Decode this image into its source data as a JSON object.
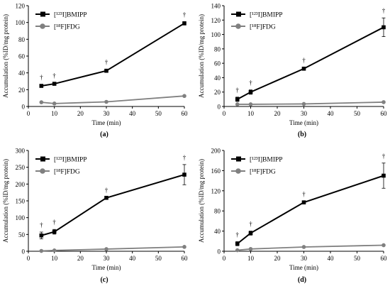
{
  "figure": {
    "colors": {
      "bmipp": "#000000",
      "fdg": "#808080",
      "axis": "#000000"
    },
    "ylabel": "Accumulation (%ID/mg protein)",
    "xlabel": "Time (min)"
  },
  "chart_data": [
    {
      "type": "line",
      "panel_label": "(a)",
      "xlabel": "Time (min)",
      "ylabel": "Accumulation (%ID/mg protein)",
      "xlim": [
        0,
        60
      ],
      "ylim": [
        0,
        120
      ],
      "xticks": [
        0,
        10,
        20,
        30,
        40,
        50,
        60
      ],
      "yticks": [
        0,
        20,
        40,
        60,
        80,
        100,
        120
      ],
      "x": [
        5,
        10,
        30,
        60
      ],
      "series": [
        {
          "name": "[¹²³I]BMIPP",
          "values": [
            24.5,
            27,
            42.5,
            99
          ],
          "errors": [
            1.5,
            1.5,
            2,
            2
          ],
          "marker": "square",
          "color": "#000000"
        },
        {
          "name": "[¹⁸F]FDG",
          "values": [
            5,
            3.5,
            5.5,
            12.5
          ],
          "errors": [
            0,
            0,
            0,
            0
          ],
          "marker": "circle",
          "color": "#808080"
        }
      ],
      "annotations": [
        {
          "text": "†",
          "x": 5
        },
        {
          "text": "†",
          "x": 10
        },
        {
          "text": "†",
          "x": 30
        },
        {
          "text": "†",
          "x": 60
        }
      ],
      "legend": "top-left",
      "grid": false
    },
    {
      "type": "line",
      "panel_label": "(b)",
      "xlabel": "Time (min)",
      "ylabel": "Accumulation (%ID/mg protein)",
      "xlim": [
        0,
        60
      ],
      "ylim": [
        0,
        140
      ],
      "xticks": [
        0,
        10,
        20,
        30,
        40,
        50,
        60
      ],
      "yticks": [
        0,
        20,
        40,
        60,
        80,
        100,
        120,
        140
      ],
      "x": [
        5,
        10,
        30,
        60
      ],
      "series": [
        {
          "name": "[¹²³I]BMIPP",
          "values": [
            10,
            20,
            52.5,
            110
          ],
          "errors": [
            3,
            3,
            1.5,
            13
          ],
          "marker": "square",
          "color": "#000000"
        },
        {
          "name": "[¹⁸F]FDG",
          "values": [
            3,
            3,
            3.5,
            6
          ],
          "errors": [
            0,
            0,
            0,
            0
          ],
          "marker": "circle",
          "color": "#808080"
        }
      ],
      "annotations": [
        {
          "text": "†",
          "x": 5
        },
        {
          "text": "†",
          "x": 10
        },
        {
          "text": "†",
          "x": 30
        },
        {
          "text": "†",
          "x": 60
        }
      ],
      "legend": "top-left",
      "grid": false
    },
    {
      "type": "line",
      "panel_label": "(c)",
      "xlabel": "Time (min)",
      "ylabel": "Accumulation (%ID/mg protein)",
      "xlim": [
        0,
        60
      ],
      "ylim": [
        0,
        300
      ],
      "xticks": [
        0,
        10,
        20,
        30,
        40,
        50,
        60
      ],
      "yticks": [
        0,
        50,
        100,
        150,
        200,
        250,
        300
      ],
      "x": [
        5,
        10,
        30,
        60
      ],
      "series": [
        {
          "name": "[¹²³I]BMIPP",
          "values": [
            47,
            58,
            159,
            228
          ],
          "errors": [
            10,
            7,
            2,
            30
          ],
          "marker": "square",
          "color": "#000000"
        },
        {
          "name": "[¹⁸F]FDG",
          "values": [
            1,
            2.5,
            6.5,
            13
          ],
          "errors": [
            0,
            0,
            0,
            0
          ],
          "marker": "circle",
          "color": "#808080"
        }
      ],
      "annotations": [
        {
          "text": "†",
          "x": 5
        },
        {
          "text": "†",
          "x": 10
        },
        {
          "text": "†",
          "x": 30
        },
        {
          "text": "†",
          "x": 60
        }
      ],
      "legend": "top-left",
      "grid": false
    },
    {
      "type": "line",
      "panel_label": "(d)",
      "xlabel": "Time (min)",
      "ylabel": "Accumulation (%ID/mg protein)",
      "xlim": [
        0,
        60
      ],
      "ylim": [
        0,
        200
      ],
      "xticks": [
        0,
        10,
        20,
        30,
        40,
        50,
        60
      ],
      "yticks": [
        0,
        40,
        80,
        120,
        160,
        200
      ],
      "x": [
        5,
        10,
        30,
        60
      ],
      "series": [
        {
          "name": "[¹²³I]BMIPP",
          "values": [
            15,
            36,
            97,
            150
          ],
          "errors": [
            4,
            4,
            2,
            25
          ],
          "marker": "square",
          "color": "#000000"
        },
        {
          "name": "[¹⁸F]FDG",
          "values": [
            2,
            4.5,
            8.5,
            12
          ],
          "errors": [
            0,
            0,
            0,
            0
          ],
          "marker": "circle",
          "color": "#808080"
        }
      ],
      "annotations": [
        {
          "text": "†",
          "x": 5
        },
        {
          "text": "†",
          "x": 10
        },
        {
          "text": "†",
          "x": 30
        },
        {
          "text": "†",
          "x": 60
        }
      ],
      "legend": "top-left",
      "grid": false
    }
  ]
}
